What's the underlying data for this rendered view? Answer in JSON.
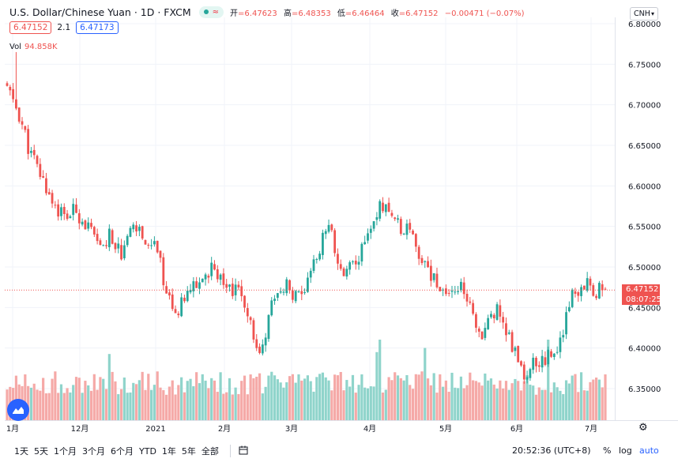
{
  "header": {
    "symbol": "U.S. Dollar/Chinese Yuan · 1D · FXCM",
    "status_icon": "market-open-dot",
    "open_label": "开",
    "open": "=6.47623",
    "high_label": "高",
    "high": "=6.48353",
    "low_label": "低",
    "low": "=6.46464",
    "close_label": "收",
    "close": "=6.47152",
    "change": "−0.00471 (−0.07%)"
  },
  "quote": {
    "bid": "6.47152",
    "spread": "2.1",
    "ask": "6.47173"
  },
  "volume": {
    "label": "Vol",
    "value": "94.858K"
  },
  "currency_selector": "CNH",
  "price_badge": {
    "price": "6.47152",
    "countdown": "08:07:25"
  },
  "bottom_bar": {
    "ranges": [
      "1天",
      "5天",
      "1个月",
      "3个月",
      "6个月",
      "YTD",
      "1年",
      "5年",
      "全部"
    ],
    "calendar_icon": "calendar-range-icon",
    "clock": "20:52:36 (UTC+8)",
    "percent_label": "%",
    "log_label": "log",
    "auto_label": "auto"
  },
  "colors": {
    "up": "#26a69a",
    "down": "#ef5350",
    "vol_up": "#8fd4cb",
    "vol_down": "#f5a9a7",
    "accent": "#2962ff"
  },
  "chart_data": {
    "type": "candlestick",
    "title": "U.S. Dollar/Chinese Yuan · 1D · FXCM",
    "ylim": [
      6.32,
      6.81
    ],
    "y_ticks": [
      6.35,
      6.4,
      6.45,
      6.5,
      6.55,
      6.6,
      6.65,
      6.7,
      6.75,
      6.8
    ],
    "y_tick_labels": [
      "6.35000",
      "6.40000",
      "6.45000",
      "6.50000",
      "6.55000",
      "6.60000",
      "6.65000",
      "6.70000",
      "6.75000",
      "6.80000"
    ],
    "x_tick_labels": [
      "1月",
      "12月",
      "2021",
      "2月",
      "3月",
      "4月",
      "5月",
      "6月",
      "7月"
    ],
    "grid": true,
    "current_price": 6.47152,
    "close_path": [
      6.72,
      6.69,
      6.64,
      6.61,
      6.58,
      6.56,
      6.57,
      6.55,
      6.52,
      6.54,
      6.51,
      6.55,
      6.53,
      6.52,
      6.46,
      6.45,
      6.47,
      6.49,
      6.5,
      6.48,
      6.47,
      6.43,
      6.4,
      6.45,
      6.48,
      6.46,
      6.47,
      6.52,
      6.55,
      6.49,
      6.5,
      6.53,
      6.57,
      6.58,
      6.55,
      6.54,
      6.51,
      6.49,
      6.47,
      6.48,
      6.46,
      6.41,
      6.45,
      6.44,
      6.4,
      6.37,
      6.38,
      6.39,
      6.4,
      6.46,
      6.48,
      6.47,
      6.47
    ]
  }
}
